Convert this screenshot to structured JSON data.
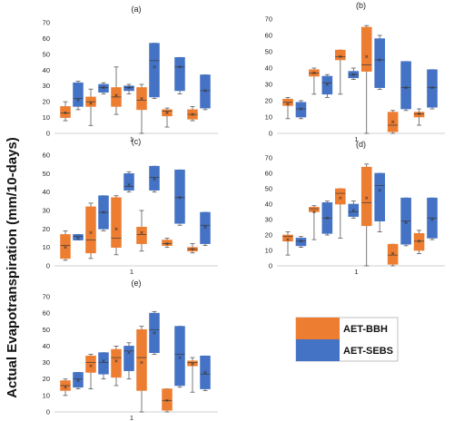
{
  "ylabel": "Actual Evapotranspiration  (mm/10-days)",
  "legend": [
    {
      "name": "AET-BBH",
      "color": "#ED7D31"
    },
    {
      "name": "AET-SEBS",
      "color": "#4472C4"
    }
  ],
  "colors": {
    "bbh": "#ED7D31",
    "sebs": "#4472C4",
    "whisker": "#595959"
  },
  "chart_data": [
    {
      "type": "box",
      "title": "(a)",
      "ylim": [
        0,
        70
      ],
      "yticks": [
        0,
        10,
        20,
        30,
        40,
        50,
        60,
        70
      ],
      "xtick": "1",
      "boxes": [
        {
          "series": "AET-BBH",
          "min": 8,
          "q1": 10,
          "median": 13,
          "q3": 17,
          "max": 20,
          "mean": 13
        },
        {
          "series": "AET-SEBS",
          "min": 15,
          "q1": 17,
          "median": 22,
          "q3": 32,
          "max": 33,
          "mean": 21
        },
        {
          "series": "AET-BBH",
          "min": 5,
          "q1": 17,
          "median": 20,
          "q3": 23,
          "max": 28,
          "mean": 19
        },
        {
          "series": "AET-SEBS",
          "min": 25,
          "q1": 26,
          "median": 29,
          "q3": 31,
          "max": 32,
          "mean": 29
        },
        {
          "series": "AET-BBH",
          "min": 12,
          "q1": 17,
          "median": 23,
          "q3": 29,
          "max": 42,
          "mean": 24
        },
        {
          "series": "AET-SEBS",
          "min": 25,
          "q1": 27,
          "median": 29,
          "q3": 30,
          "max": 31,
          "mean": 29
        },
        {
          "series": "AET-BBH",
          "min": 0,
          "q1": 15,
          "median": 21,
          "q3": 29,
          "max": 31,
          "mean": 22
        },
        {
          "series": "AET-SEBS",
          "min": 22,
          "q1": 23,
          "median": 46,
          "q3": 57,
          "max": 57,
          "mean": 42
        },
        {
          "series": "AET-BBH",
          "min": 4,
          "q1": 11,
          "median": 14,
          "q3": 15,
          "max": 16,
          "mean": 13
        },
        {
          "series": "AET-SEBS",
          "min": 25,
          "q1": 27,
          "median": 42,
          "q3": 48,
          "max": 48,
          "mean": 42
        },
        {
          "series": "AET-BBH",
          "min": 8,
          "q1": 9,
          "median": 12,
          "q3": 15,
          "max": 17,
          "mean": 12
        },
        {
          "series": "AET-SEBS",
          "min": 15,
          "q1": 16,
          "median": 27,
          "q3": 37,
          "max": 37,
          "mean": 27
        }
      ]
    },
    {
      "type": "box",
      "title": "(b)",
      "ylim": [
        0,
        70
      ],
      "yticks": [
        0,
        10,
        20,
        30,
        40,
        50,
        60,
        70
      ],
      "xtick": "1",
      "boxes": [
        {
          "series": "AET-BBH",
          "min": 9,
          "q1": 17,
          "median": 19,
          "q3": 21,
          "max": 22,
          "mean": 18
        },
        {
          "series": "AET-SEBS",
          "min": 9,
          "q1": 10,
          "median": 15,
          "q3": 19,
          "max": 20,
          "mean": 15
        },
        {
          "series": "AET-BBH",
          "min": 24,
          "q1": 35,
          "median": 37,
          "q3": 39,
          "max": 40,
          "mean": 37
        },
        {
          "series": "AET-SEBS",
          "min": 22,
          "q1": 24,
          "median": 31,
          "q3": 35,
          "max": 36,
          "mean": 30
        },
        {
          "series": "AET-BBH",
          "min": 24,
          "q1": 45,
          "median": 47,
          "q3": 51,
          "max": 51,
          "mean": 47
        },
        {
          "series": "AET-SEBS",
          "min": 33,
          "q1": 34,
          "median": 36,
          "q3": 38,
          "max": 40,
          "mean": 36
        },
        {
          "series": "AET-BBH",
          "min": 0,
          "q1": 38,
          "median": 42,
          "q3": 65,
          "max": 66,
          "mean": 47
        },
        {
          "series": "AET-SEBS",
          "min": 27,
          "q1": 28,
          "median": 45,
          "q3": 58,
          "max": 60,
          "mean": 45
        },
        {
          "series": "AET-BBH",
          "min": 0,
          "q1": 1,
          "median": 5,
          "q3": 13,
          "max": 14,
          "mean": 7
        },
        {
          "series": "AET-SEBS",
          "min": 14,
          "q1": 15,
          "median": 28,
          "q3": 44,
          "max": 44,
          "mean": 28
        },
        {
          "series": "AET-BBH",
          "min": 5,
          "q1": 10,
          "median": 12,
          "q3": 13,
          "max": 15,
          "mean": 12
        },
        {
          "series": "AET-SEBS",
          "min": 15,
          "q1": 16,
          "median": 28,
          "q3": 39,
          "max": 39,
          "mean": 28
        }
      ]
    },
    {
      "type": "box",
      "title": "(c)",
      "ylim": [
        0,
        60
      ],
      "yticks": [
        0,
        10,
        20,
        30,
        40,
        50,
        60
      ],
      "xtick": "1",
      "boxes": [
        {
          "series": "AET-BBH",
          "min": 3,
          "q1": 4,
          "median": 11,
          "q3": 17,
          "max": 19,
          "mean": 10
        },
        {
          "series": "AET-SEBS",
          "min": 14,
          "q1": 14,
          "median": 16,
          "q3": 17,
          "max": 17,
          "mean": 15
        },
        {
          "series": "AET-BBH",
          "min": 4,
          "q1": 7,
          "median": 14,
          "q3": 32,
          "max": 34,
          "mean": 18
        },
        {
          "series": "AET-SEBS",
          "min": 19,
          "q1": 20,
          "median": 29,
          "q3": 38,
          "max": 38,
          "mean": 29
        },
        {
          "series": "AET-BBH",
          "min": 6,
          "q1": 10,
          "median": 15,
          "q3": 37,
          "max": 38,
          "mean": 20
        },
        {
          "series": "AET-SEBS",
          "min": 40,
          "q1": 41,
          "median": 43,
          "q3": 50,
          "max": 51,
          "mean": 44
        },
        {
          "series": "AET-BBH",
          "min": 8,
          "q1": 12,
          "median": 17,
          "q3": 21,
          "max": 30,
          "mean": 18
        },
        {
          "series": "AET-SEBS",
          "min": 40,
          "q1": 41,
          "median": 48,
          "q3": 54,
          "max": 54,
          "mean": 47
        },
        {
          "series": "AET-BBH",
          "min": 10,
          "q1": 11,
          "median": 12,
          "q3": 14,
          "max": 15,
          "mean": 12
        },
        {
          "series": "AET-SEBS",
          "min": 22,
          "q1": 23,
          "median": 37,
          "q3": 52,
          "max": 52,
          "mean": 37
        },
        {
          "series": "AET-BBH",
          "min": 7,
          "q1": 8,
          "median": 9,
          "q3": 10,
          "max": 12,
          "mean": 9
        },
        {
          "series": "AET-SEBS",
          "min": 11,
          "q1": 12,
          "median": 22,
          "q3": 29,
          "max": 29,
          "mean": 21
        }
      ]
    },
    {
      "type": "box",
      "title": "(d)",
      "ylim": [
        0,
        70
      ],
      "yticks": [
        0,
        10,
        20,
        30,
        40,
        50,
        60,
        70
      ],
      "xtick": "1",
      "boxes": [
        {
          "series": "AET-BBH",
          "min": 7,
          "q1": 16,
          "median": 19,
          "q3": 20,
          "max": 22,
          "mean": 17
        },
        {
          "series": "AET-SEBS",
          "min": 12,
          "q1": 13,
          "median": 16,
          "q3": 18,
          "max": 19,
          "mean": 16
        },
        {
          "series": "AET-BBH",
          "min": 17,
          "q1": 35,
          "median": 37,
          "q3": 38,
          "max": 39,
          "mean": 35
        },
        {
          "series": "AET-SEBS",
          "min": 20,
          "q1": 21,
          "median": 31,
          "q3": 41,
          "max": 42,
          "mean": 31
        },
        {
          "series": "AET-BBH",
          "min": 18,
          "q1": 40,
          "median": 47,
          "q3": 50,
          "max": 50,
          "mean": 44
        },
        {
          "series": "AET-SEBS",
          "min": 31,
          "q1": 32,
          "median": 35,
          "q3": 40,
          "max": 42,
          "mean": 36
        },
        {
          "series": "AET-BBH",
          "min": 0,
          "q1": 26,
          "median": 41,
          "q3": 64,
          "max": 66,
          "mean": 44
        },
        {
          "series": "AET-SEBS",
          "min": 22,
          "q1": 29,
          "median": 52,
          "q3": 60,
          "max": 60,
          "mean": 49
        },
        {
          "series": "AET-BBH",
          "min": 0,
          "q1": 1,
          "median": 7,
          "q3": 14,
          "max": 14,
          "mean": 8
        },
        {
          "series": "AET-SEBS",
          "min": 13,
          "q1": 14,
          "median": 29,
          "q3": 44,
          "max": 44,
          "mean": 28
        },
        {
          "series": "AET-BBH",
          "min": 8,
          "q1": 10,
          "median": 16,
          "q3": 21,
          "max": 23,
          "mean": 16
        },
        {
          "series": "AET-SEBS",
          "min": 17,
          "q1": 18,
          "median": 31,
          "q3": 44,
          "max": 44,
          "mean": 30
        }
      ]
    },
    {
      "type": "box",
      "title": "(e)",
      "ylim": [
        0,
        70
      ],
      "yticks": [
        0,
        10,
        20,
        30,
        40,
        50,
        60,
        70
      ],
      "xtick": "1",
      "boxes": [
        {
          "series": "AET-BBH",
          "min": 10,
          "q1": 13,
          "median": 16,
          "q3": 19,
          "max": 20,
          "mean": 15
        },
        {
          "series": "AET-SEBS",
          "min": 14,
          "q1": 15,
          "median": 20,
          "q3": 24,
          "max": 24,
          "mean": 19
        },
        {
          "series": "AET-BBH",
          "min": 14,
          "q1": 24,
          "median": 30,
          "q3": 34,
          "max": 35,
          "mean": 28
        },
        {
          "series": "AET-SEBS",
          "min": 20,
          "q1": 23,
          "median": 30,
          "q3": 36,
          "max": 36,
          "mean": 31
        },
        {
          "series": "AET-BBH",
          "min": 16,
          "q1": 21,
          "median": 33,
          "q3": 38,
          "max": 40,
          "mean": 31
        },
        {
          "series": "AET-SEBS",
          "min": 20,
          "q1": 25,
          "median": 37,
          "q3": 40,
          "max": 42,
          "mean": 36
        },
        {
          "series": "AET-BBH",
          "min": 0,
          "q1": 13,
          "median": 33,
          "q3": 50,
          "max": 52,
          "mean": 30
        },
        {
          "series": "AET-SEBS",
          "min": 35,
          "q1": 36,
          "median": 50,
          "q3": 60,
          "max": 61,
          "mean": 48
        },
        {
          "series": "AET-BBH",
          "min": 0,
          "q1": 1,
          "median": 7,
          "q3": 14,
          "max": 14,
          "mean": 7
        },
        {
          "series": "AET-SEBS",
          "min": 15,
          "q1": 16,
          "median": 35,
          "q3": 52,
          "max": 52,
          "mean": 33
        },
        {
          "series": "AET-BBH",
          "min": 12,
          "q1": 28,
          "median": 30,
          "q3": 31,
          "max": 33,
          "mean": 29
        },
        {
          "series": "AET-SEBS",
          "min": 13,
          "q1": 14,
          "median": 23,
          "q3": 34,
          "max": 34,
          "mean": 24
        }
      ]
    }
  ]
}
